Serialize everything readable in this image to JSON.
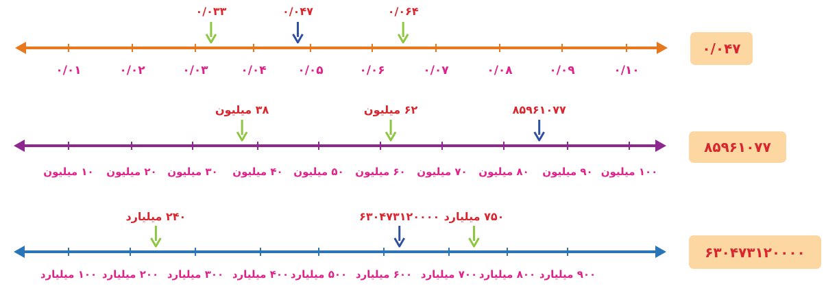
{
  "number_lines": [
    {
      "id": "line-decimal",
      "box_value": "۰/۰۴۷",
      "tick_labels": [
        "۰/۰۱",
        "۰/۰۲",
        "۰/۰۳",
        "۰/۰۴",
        "۰/۰۵",
        "۰/۰۶",
        "۰/۰۷",
        "۰/۰۸",
        "۰/۰۹",
        "۰/۱۰"
      ],
      "markers": [
        {
          "label": "۰/۰۳۳",
          "value": 0.033,
          "kind": "estimate"
        },
        {
          "label": "۰/۰۴۷",
          "value": 0.047,
          "kind": "exact"
        },
        {
          "label": "۰/۰۶۴",
          "value": 0.064,
          "kind": "estimate"
        }
      ],
      "min": 0.01,
      "max": 0.1
    },
    {
      "id": "line-million",
      "box_value": "۸۵۹۶۱۰۷۷",
      "tick_labels": [
        "۱۰ میلیون",
        "۲۰ میلیون",
        "۳۰ میلیون",
        "۴۰ میلیون",
        "۵۰ میلیون",
        "۶۰ میلیون",
        "۷۰ میلیون",
        "۸۰ میلیون",
        "۹۰ میلیون",
        "۱۰۰ میلیون"
      ],
      "markers": [
        {
          "label": "۳۸ میلیون",
          "value": 38,
          "kind": "estimate"
        },
        {
          "label": "۶۲ میلیون",
          "value": 62,
          "kind": "estimate"
        },
        {
          "label": "۸۵۹۶۱۰۷۷",
          "value": 85.96,
          "kind": "exact"
        }
      ],
      "min": 10,
      "max": 100
    },
    {
      "id": "line-billion",
      "box_value": "۶۳۰۴۷۳۱۲۰۰۰۰",
      "tick_labels": [
        "۱۰۰ میلیارد",
        "۲۰۰ میلیارد",
        "۳۰۰ میلیارد",
        "۴۰۰ میلیارد",
        "۵۰۰ میلیارد",
        "۶۰۰ میلیارد",
        "۷۰۰ میلیارد",
        "۸۰۰ میلیارد",
        "۹۰۰ میلیارد"
      ],
      "markers": [
        {
          "label": "۲۴۰ میلیارد",
          "value": 240,
          "kind": "estimate"
        },
        {
          "label": "۶۳۰۴۷۳۱۲۰۰۰۰",
          "value": 630.47,
          "kind": "exact"
        },
        {
          "label": "۷۵۰ میلیارد",
          "value": 750,
          "kind": "estimate"
        }
      ],
      "min": 100,
      "max": 900
    }
  ],
  "colors": {
    "line_decimal": "#e8781e",
    "line_million": "#8e278f",
    "line_billion": "#2a74b8",
    "tick_label_pink": "#e0218a",
    "marker_label_red": "#d9262e",
    "arrow_green": "#8dc63f",
    "arrow_blue": "#2e4fa0",
    "box_bg": "#fcd7a2"
  }
}
